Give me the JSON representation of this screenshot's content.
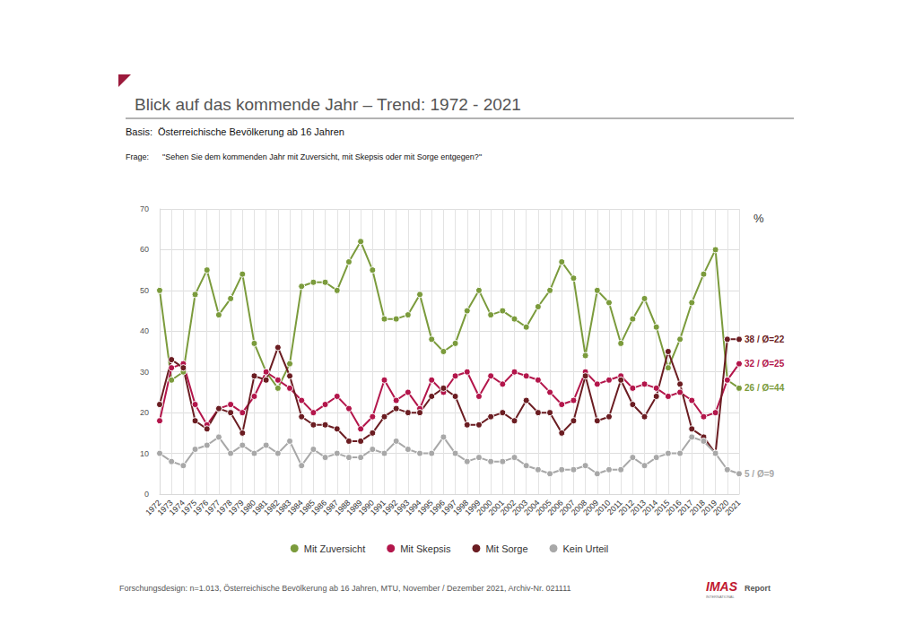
{
  "chart_data": {
    "type": "line",
    "title": "Blick auf das kommende Jahr – Trend: 1972 - 2021",
    "subtitle": "Basis:  Österreichische Bevölkerung ab 16 Jahren",
    "question": "Frage:      \"Sehen Sie dem kommenden Jahr mit Zuversicht, mit Skepsis oder mit Sorge entgegen?\"",
    "ylabel": "%",
    "footer": "Forschungsdesign: n=1.013, Österreichische Bevölkerung ab 16 Jahren, MTU, November / Dezember 2021, Archiv-Nr. 021111",
    "logo": {
      "name": "IMAS",
      "sub": "INTERNATIONAL",
      "suffix": "Report"
    },
    "categories": [
      "1972",
      "1973",
      "1974",
      "1975",
      "1976",
      "1977",
      "1978",
      "1979",
      "1980",
      "1981",
      "1982",
      "1983",
      "1984",
      "1985",
      "1986",
      "1987",
      "1988",
      "1989",
      "1990",
      "1991",
      "1992",
      "1993",
      "1994",
      "1995",
      "1996",
      "1997",
      "1998",
      "1999",
      "2000",
      "2001",
      "2002",
      "2003",
      "2004",
      "2005",
      "2006",
      "2007",
      "2008",
      "2009",
      "2010",
      "2011",
      "2012",
      "2013",
      "2014",
      "2015",
      "2016",
      "2017",
      "2018",
      "2019",
      "2020",
      "2021"
    ],
    "series": [
      {
        "name": "Mit Zuversicht",
        "color": "#7b9b3c",
        "annotation": "26 / Ø=44",
        "values": [
          50,
          28,
          30,
          49,
          55,
          44,
          48,
          54,
          37,
          30,
          26,
          32,
          51,
          52,
          52,
          50,
          57,
          62,
          55,
          43,
          43,
          44,
          49,
          38,
          35,
          37,
          45,
          50,
          44,
          45,
          43,
          41,
          46,
          50,
          57,
          53,
          34,
          50,
          47,
          37,
          43,
          48,
          41,
          31,
          38,
          47,
          54,
          60,
          28,
          26
        ]
      },
      {
        "name": "Mit Skepsis",
        "color": "#b3164b",
        "annotation": "32 / Ø=25",
        "values": [
          18,
          31,
          32,
          22,
          17,
          21,
          22,
          20,
          24,
          30,
          28,
          26,
          23,
          20,
          22,
          24,
          21,
          16,
          19,
          28,
          23,
          25,
          21,
          28,
          25,
          29,
          30,
          24,
          29,
          27,
          30,
          29,
          28,
          25,
          22,
          23,
          30,
          27,
          28,
          29,
          26,
          27,
          26,
          24,
          25,
          23,
          19,
          20,
          28,
          32
        ]
      },
      {
        "name": "Mit Sorge",
        "color": "#6b1d22",
        "annotation": "38 / Ø=22",
        "values": [
          22,
          33,
          31,
          18,
          16,
          21,
          20,
          15,
          29,
          28,
          36,
          29,
          19,
          17,
          17,
          16,
          13,
          13,
          15,
          19,
          21,
          20,
          20,
          24,
          26,
          24,
          17,
          17,
          19,
          20,
          18,
          23,
          20,
          20,
          15,
          18,
          29,
          18,
          19,
          28,
          22,
          19,
          24,
          35,
          27,
          16,
          14,
          10,
          38,
          38
        ]
      },
      {
        "name": "Kein Urteil",
        "color": "#a8a8a8",
        "annotation": "5 / Ø=9",
        "values": [
          10,
          8,
          7,
          11,
          12,
          14,
          10,
          12,
          10,
          12,
          10,
          13,
          7,
          11,
          9,
          10,
          9,
          9,
          11,
          10,
          13,
          11,
          10,
          10,
          14,
          10,
          8,
          9,
          8,
          8,
          9,
          7,
          6,
          5,
          6,
          6,
          7,
          5,
          6,
          6,
          9,
          7,
          9,
          10,
          10,
          14,
          13,
          10,
          6,
          5
        ]
      }
    ],
    "ylim": [
      0,
      70
    ],
    "yticks": [
      0,
      10,
      20,
      30,
      40,
      50,
      60,
      70
    ],
    "grid": true,
    "legend": "bottom",
    "marker": "circle"
  }
}
